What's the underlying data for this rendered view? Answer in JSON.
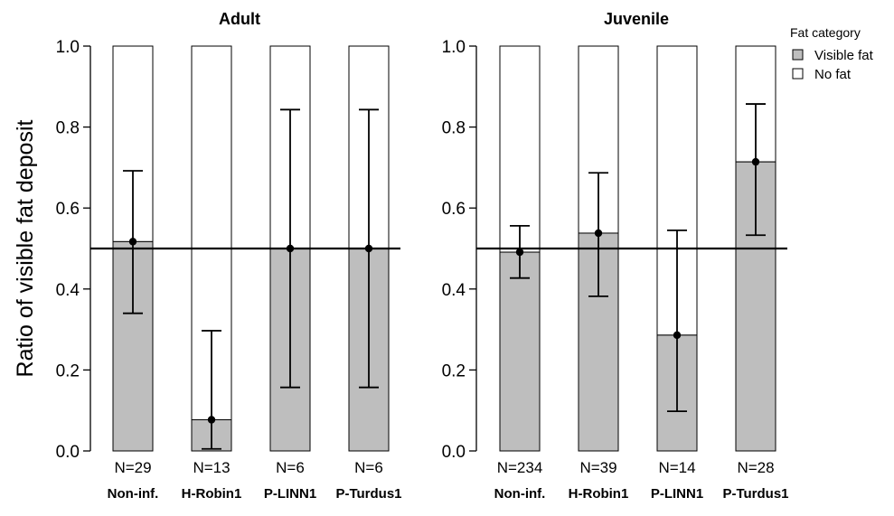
{
  "chart_data": {
    "type": "bar",
    "ylabel": "Ratio of visible fat deposit",
    "ylim": [
      0,
      1
    ],
    "yticks": [
      "0.0",
      "0.2",
      "0.4",
      "0.6",
      "0.8",
      "1.0"
    ],
    "reference_line": 0.5,
    "legend": {
      "title": "Fat category",
      "position": "top-right",
      "entries": [
        {
          "label": "Visible fat",
          "color": "#bebebe"
        },
        {
          "label": "No fat",
          "color": "#ffffff"
        }
      ]
    },
    "panels": [
      {
        "title": "Adult",
        "categories": [
          "Non-inf.",
          "H-Robin1",
          "P-LINN1",
          "P-Turdus1"
        ],
        "n_labels": [
          "N=29",
          "N=13",
          "N=6",
          "N=6"
        ],
        "visible_fat": [
          0.517,
          0.077,
          0.5,
          0.5
        ],
        "ci_low": [
          0.34,
          0.005,
          0.157,
          0.157
        ],
        "ci_high": [
          0.692,
          0.297,
          0.843,
          0.843
        ]
      },
      {
        "title": "Juvenile",
        "categories": [
          "Non-inf.",
          "H-Robin1",
          "P-LINN1",
          "P-Turdus1"
        ],
        "n_labels": [
          "N=234",
          "N=39",
          "N=14",
          "N=28"
        ],
        "visible_fat": [
          0.491,
          0.538,
          0.286,
          0.714
        ],
        "ci_low": [
          0.427,
          0.382,
          0.098,
          0.533
        ],
        "ci_high": [
          0.556,
          0.687,
          0.545,
          0.857
        ]
      }
    ]
  }
}
